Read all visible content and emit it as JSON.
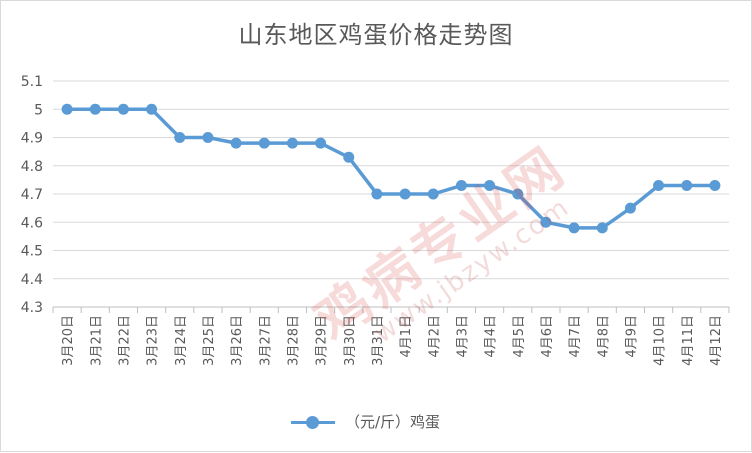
{
  "chart_data": {
    "type": "line",
    "title": "山东地区鸡蛋价格走势图",
    "categories": [
      "3月20日",
      "3月21日",
      "3月22日",
      "3月23日",
      "3月24日",
      "3月25日",
      "3月26日",
      "3月27日",
      "3月28日",
      "3月29日",
      "3月30日",
      "3月31日",
      "4月1日",
      "4月2日",
      "4月3日",
      "4月4日",
      "4月5日",
      "4月6日",
      "4月7日",
      "4月8日",
      "4月9日",
      "4月10日",
      "4月11日",
      "4月12日"
    ],
    "series": [
      {
        "name": "（元/斤）鸡蛋",
        "values": [
          5.0,
          5.0,
          5.0,
          5.0,
          4.9,
          4.9,
          4.88,
          4.88,
          4.88,
          4.88,
          4.83,
          4.7,
          4.7,
          4.7,
          4.73,
          4.73,
          4.7,
          4.6,
          4.58,
          4.58,
          4.65,
          4.73,
          4.73,
          4.73
        ],
        "color": "#5b9bd5"
      }
    ],
    "ylim": [
      4.3,
      5.1
    ],
    "yticks": [
      "4.3",
      "4.4",
      "4.5",
      "4.6",
      "4.7",
      "4.8",
      "4.9",
      "5",
      "5.1"
    ],
    "grid": true,
    "legend": "bottom"
  },
  "watermark": {
    "brand": "鸡病专业网",
    "url": "www.jbzyw.com"
  }
}
